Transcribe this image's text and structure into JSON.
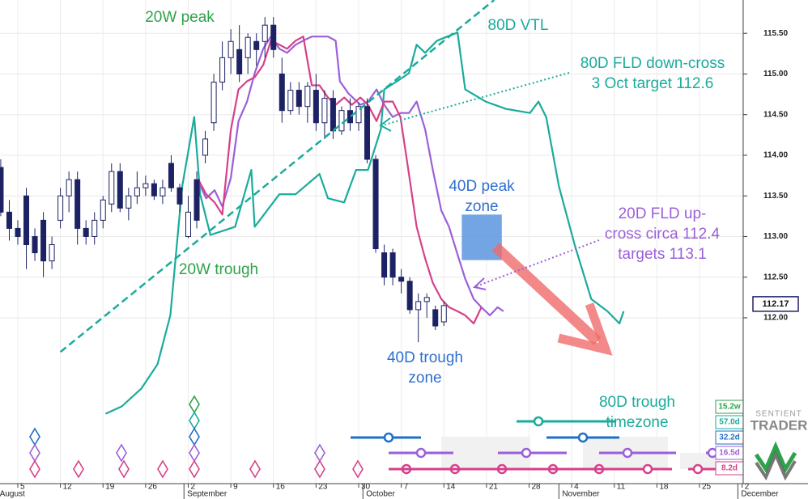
{
  "chart_data": {
    "type": "candlestick",
    "xlim": [
      -2.09,
      85.32
    ],
    "ylim": [
      109.94,
      115.91
    ],
    "grid": true,
    "yticks": [
      {
        "value": 112,
        "label": "112.00"
      },
      {
        "value": 112.5,
        "label": "112.50"
      },
      {
        "value": 113,
        "label": "113.00"
      },
      {
        "value": 113.5,
        "label": "113.50"
      },
      {
        "value": 114,
        "label": "114.00"
      },
      {
        "value": 114.5,
        "label": "114.50"
      },
      {
        "value": 115,
        "label": "115.00"
      },
      {
        "value": 115.5,
        "label": "115.50"
      }
    ],
    "xticks": [
      {
        "value": 0,
        "label": "5"
      },
      {
        "value": 5,
        "label": "12"
      },
      {
        "value": 10,
        "label": "19"
      },
      {
        "value": 15,
        "label": "26"
      },
      {
        "value": 20,
        "label": "2"
      },
      {
        "value": 25,
        "label": "9"
      },
      {
        "value": 30,
        "label": "16"
      },
      {
        "value": 35,
        "label": "23"
      },
      {
        "value": 40,
        "label": "30"
      },
      {
        "value": 45,
        "label": "7"
      },
      {
        "value": 50,
        "label": "14"
      },
      {
        "value": 55,
        "label": "21"
      },
      {
        "value": 60,
        "label": "28"
      },
      {
        "value": 65,
        "label": "4"
      },
      {
        "value": 70,
        "label": "11"
      },
      {
        "value": 75,
        "label": "18"
      },
      {
        "value": 80,
        "label": "25"
      },
      {
        "value": 85,
        "label": "2"
      }
    ],
    "month_ticks": [
      {
        "value": -2.5,
        "label": "August"
      },
      {
        "value": 19.5,
        "label": "September"
      },
      {
        "value": 40.5,
        "label": "October"
      },
      {
        "value": 63.5,
        "label": "November"
      },
      {
        "value": 84.5,
        "label": "December"
      }
    ],
    "last_price": 112.17,
    "candles": {
      "x": [
        -2,
        -1,
        0,
        1,
        2,
        3,
        4,
        5,
        6,
        7,
        8,
        9,
        10,
        11,
        12,
        13,
        14,
        15,
        16,
        17,
        18,
        19,
        20,
        21,
        22,
        23,
        24,
        25,
        26,
        27,
        28,
        29,
        30,
        31,
        32,
        33,
        34,
        35,
        36,
        37,
        38,
        39,
        40,
        41,
        42,
        43,
        44,
        45,
        46,
        47,
        48,
        49,
        50
      ],
      "open": [
        113.85,
        113.3,
        113.1,
        113.5,
        113.0,
        113.2,
        112.7,
        113.2,
        113.5,
        113.7,
        113.1,
        113.0,
        113.2,
        113.4,
        113.8,
        113.35,
        113.5,
        113.6,
        113.65,
        113.5,
        113.9,
        113.6,
        113.0,
        113.7,
        114.0,
        114.4,
        114.9,
        115.2,
        115.3,
        115.2,
        115.4,
        115.4,
        115.6,
        115.0,
        114.55,
        114.8,
        114.6,
        114.8,
        114.4,
        114.7,
        114.3,
        114.55,
        114.4,
        114.6,
        113.95,
        112.8,
        112.8,
        112.5,
        112.45,
        112.1,
        112.2,
        112.1,
        111.95
      ],
      "high": [
        113.95,
        113.45,
        113.2,
        113.6,
        113.1,
        113.3,
        113.0,
        113.6,
        113.8,
        113.8,
        113.2,
        113.3,
        113.5,
        113.9,
        113.9,
        113.6,
        113.8,
        113.75,
        113.7,
        113.7,
        114.0,
        113.65,
        113.5,
        113.8,
        114.3,
        115.0,
        115.4,
        115.55,
        115.6,
        115.5,
        115.5,
        115.7,
        115.7,
        115.2,
        114.9,
        114.9,
        114.9,
        115.0,
        114.8,
        114.8,
        114.6,
        114.7,
        114.65,
        114.7,
        114.0,
        112.9,
        112.85,
        112.6,
        112.5,
        112.3,
        112.3,
        112.15,
        112.2
      ],
      "low": [
        113.25,
        112.95,
        112.9,
        112.6,
        112.7,
        112.5,
        112.6,
        113.1,
        113.3,
        112.9,
        112.9,
        112.9,
        113.1,
        113.3,
        113.3,
        113.2,
        113.4,
        113.5,
        113.45,
        113.4,
        113.55,
        113.3,
        112.98,
        113.1,
        113.9,
        114.3,
        114.8,
        115.0,
        114.9,
        115.0,
        115.1,
        115.2,
        115.2,
        114.4,
        114.5,
        114.5,
        114.4,
        114.3,
        114.2,
        114.2,
        114.25,
        114.3,
        114.3,
        113.9,
        112.8,
        112.4,
        112.4,
        112.3,
        112.05,
        111.7,
        112.0,
        111.85,
        111.9
      ],
      "close": [
        113.3,
        113.1,
        113.0,
        112.9,
        112.8,
        112.7,
        112.9,
        113.5,
        113.7,
        113.1,
        113.0,
        113.2,
        113.45,
        113.8,
        113.35,
        113.5,
        113.6,
        113.65,
        113.5,
        113.6,
        113.6,
        113.4,
        113.3,
        113.2,
        114.2,
        114.9,
        115.2,
        115.4,
        115.0,
        115.45,
        115.3,
        115.6,
        115.3,
        114.55,
        114.8,
        114.6,
        114.85,
        114.4,
        114.7,
        114.3,
        114.55,
        114.4,
        114.6,
        113.95,
        112.85,
        112.5,
        112.5,
        112.45,
        112.1,
        112.2,
        112.25,
        111.9,
        112.15
      ]
    },
    "series": [
      {
        "color": "#1aab9b",
        "x": [
          10.3,
          12.2,
          14.5,
          16.4,
          17.9,
          19.3,
          20.7,
          21.4,
          22.6,
          25.5,
          27.4,
          27.8,
          30.7,
          32.6,
          35.4,
          36.4,
          38.3,
          39.7,
          41.1,
          42.6,
          43.0,
          44.5,
          45.9,
          46.8,
          47.8,
          49.2,
          51.6,
          52.5,
          54.9,
          57.3,
          60.1,
          61.1,
          62.0,
          63.5,
          65.4,
          67.3,
          69.2,
          70.6,
          71.1
        ],
        "values": [
          110.82,
          110.91,
          111.13,
          111.43,
          112.03,
          113.62,
          114.47,
          113.52,
          113.02,
          113.12,
          113.82,
          113.12,
          113.52,
          113.52,
          113.77,
          113.47,
          113.42,
          113.82,
          113.82,
          114.32,
          114.81,
          114.91,
          115.01,
          115.36,
          115.26,
          115.41,
          115.51,
          114.81,
          114.66,
          114.57,
          114.52,
          114.66,
          114.47,
          113.62,
          112.88,
          112.23,
          112.08,
          111.93,
          112.08
        ]
      },
      {
        "color": "#9b5fd9",
        "x": [
          21.2,
          22.1,
          23.1,
          24.0,
          25.0,
          25.9,
          26.9,
          27.8,
          28.8,
          29.7,
          30.7,
          31.6,
          32.6,
          33.5,
          34.5,
          35.4,
          36.4,
          37.3,
          37.8,
          38.8,
          40.2,
          41.1,
          42.1,
          43.0,
          44.0,
          44.9,
          45.9,
          46.8,
          47.8,
          48.7,
          49.7,
          50.6,
          51.6,
          52.5,
          53.5,
          54.4,
          55.4,
          56.3,
          57.0
        ],
        "values": [
          113.67,
          113.47,
          113.57,
          113.37,
          113.72,
          114.42,
          114.66,
          115.01,
          115.31,
          115.46,
          115.31,
          115.26,
          115.36,
          115.41,
          115.46,
          115.46,
          115.46,
          115.41,
          114.91,
          114.76,
          114.62,
          114.66,
          114.81,
          114.62,
          114.47,
          114.52,
          114.52,
          114.66,
          114.32,
          113.82,
          113.32,
          113.12,
          112.78,
          112.48,
          112.23,
          112.13,
          112.03,
          112.13,
          112.08
        ]
      },
      {
        "color": "#d6408a",
        "x": [
          21.2,
          22.1,
          23.1,
          24.0,
          25.0,
          25.9,
          26.9,
          27.8,
          28.8,
          29.7,
          30.7,
          31.6,
          32.6,
          33.5,
          34.5,
          35.4,
          36.4,
          37.3,
          38.3,
          39.2,
          40.2,
          41.1,
          42.1,
          43.0,
          44.0,
          44.9,
          45.9,
          46.8,
          47.8,
          48.7,
          49.7,
          50.6,
          51.6,
          52.5,
          53.5,
          54.4
        ],
        "values": [
          113.7,
          113.52,
          113.42,
          113.27,
          114.31,
          114.81,
          114.91,
          114.96,
          115.11,
          115.41,
          115.36,
          115.31,
          115.41,
          115.46,
          114.86,
          114.86,
          114.71,
          114.62,
          114.71,
          114.62,
          114.71,
          114.62,
          114.42,
          114.66,
          114.66,
          114.47,
          113.77,
          113.12,
          112.73,
          112.43,
          112.23,
          112.13,
          112.08,
          112.03,
          111.93,
          112.13
        ]
      }
    ],
    "vtl": {
      "color": "#1aab9b",
      "x": [
        5.0,
        55.9
      ],
      "values": [
        111.58,
        115.91
      ]
    },
    "peak_zone": {
      "color": "#5b95e0",
      "x": [
        52.1,
        56.8
      ],
      "values": [
        112.71,
        113.27
      ]
    },
    "annotations": [
      {
        "color": "#2ea24a",
        "lines": [
          "20W peak"
        ]
      },
      {
        "color": "#1aab9b",
        "lines": [
          "80D VTL"
        ]
      },
      {
        "color": "#1aab9b",
        "lines": [
          "80D FLD down-cross",
          "3 Oct target 112.6"
        ]
      },
      {
        "color": "#2f6fd0",
        "lines": [
          "40D peak",
          "zone"
        ]
      },
      {
        "color": "#9b5fd9",
        "lines": [
          "20D FLD up-",
          "cross circa 112.4",
          "targets 113.1"
        ]
      },
      {
        "color": "#2ea24a",
        "lines": [
          "20W trough"
        ]
      },
      {
        "color": "#2f6fd0",
        "lines": [
          "40D trough",
          "zone"
        ]
      },
      {
        "color": "#1aab9b",
        "lines": [
          "80D trough",
          "timezone"
        ]
      }
    ],
    "cycles": [
      {
        "label": "15.2w",
        "color": "#2ea24a"
      },
      {
        "label": "57.0d",
        "color": "#1aab9b"
      },
      {
        "label": "32.2d",
        "color": "#1f6fc8"
      },
      {
        "label": "16.5d",
        "color": "#9b5fd9"
      },
      {
        "label": "8.2d",
        "color": "#d6408a"
      }
    ],
    "brand": [
      "SENTIENT",
      "TRADER"
    ]
  }
}
